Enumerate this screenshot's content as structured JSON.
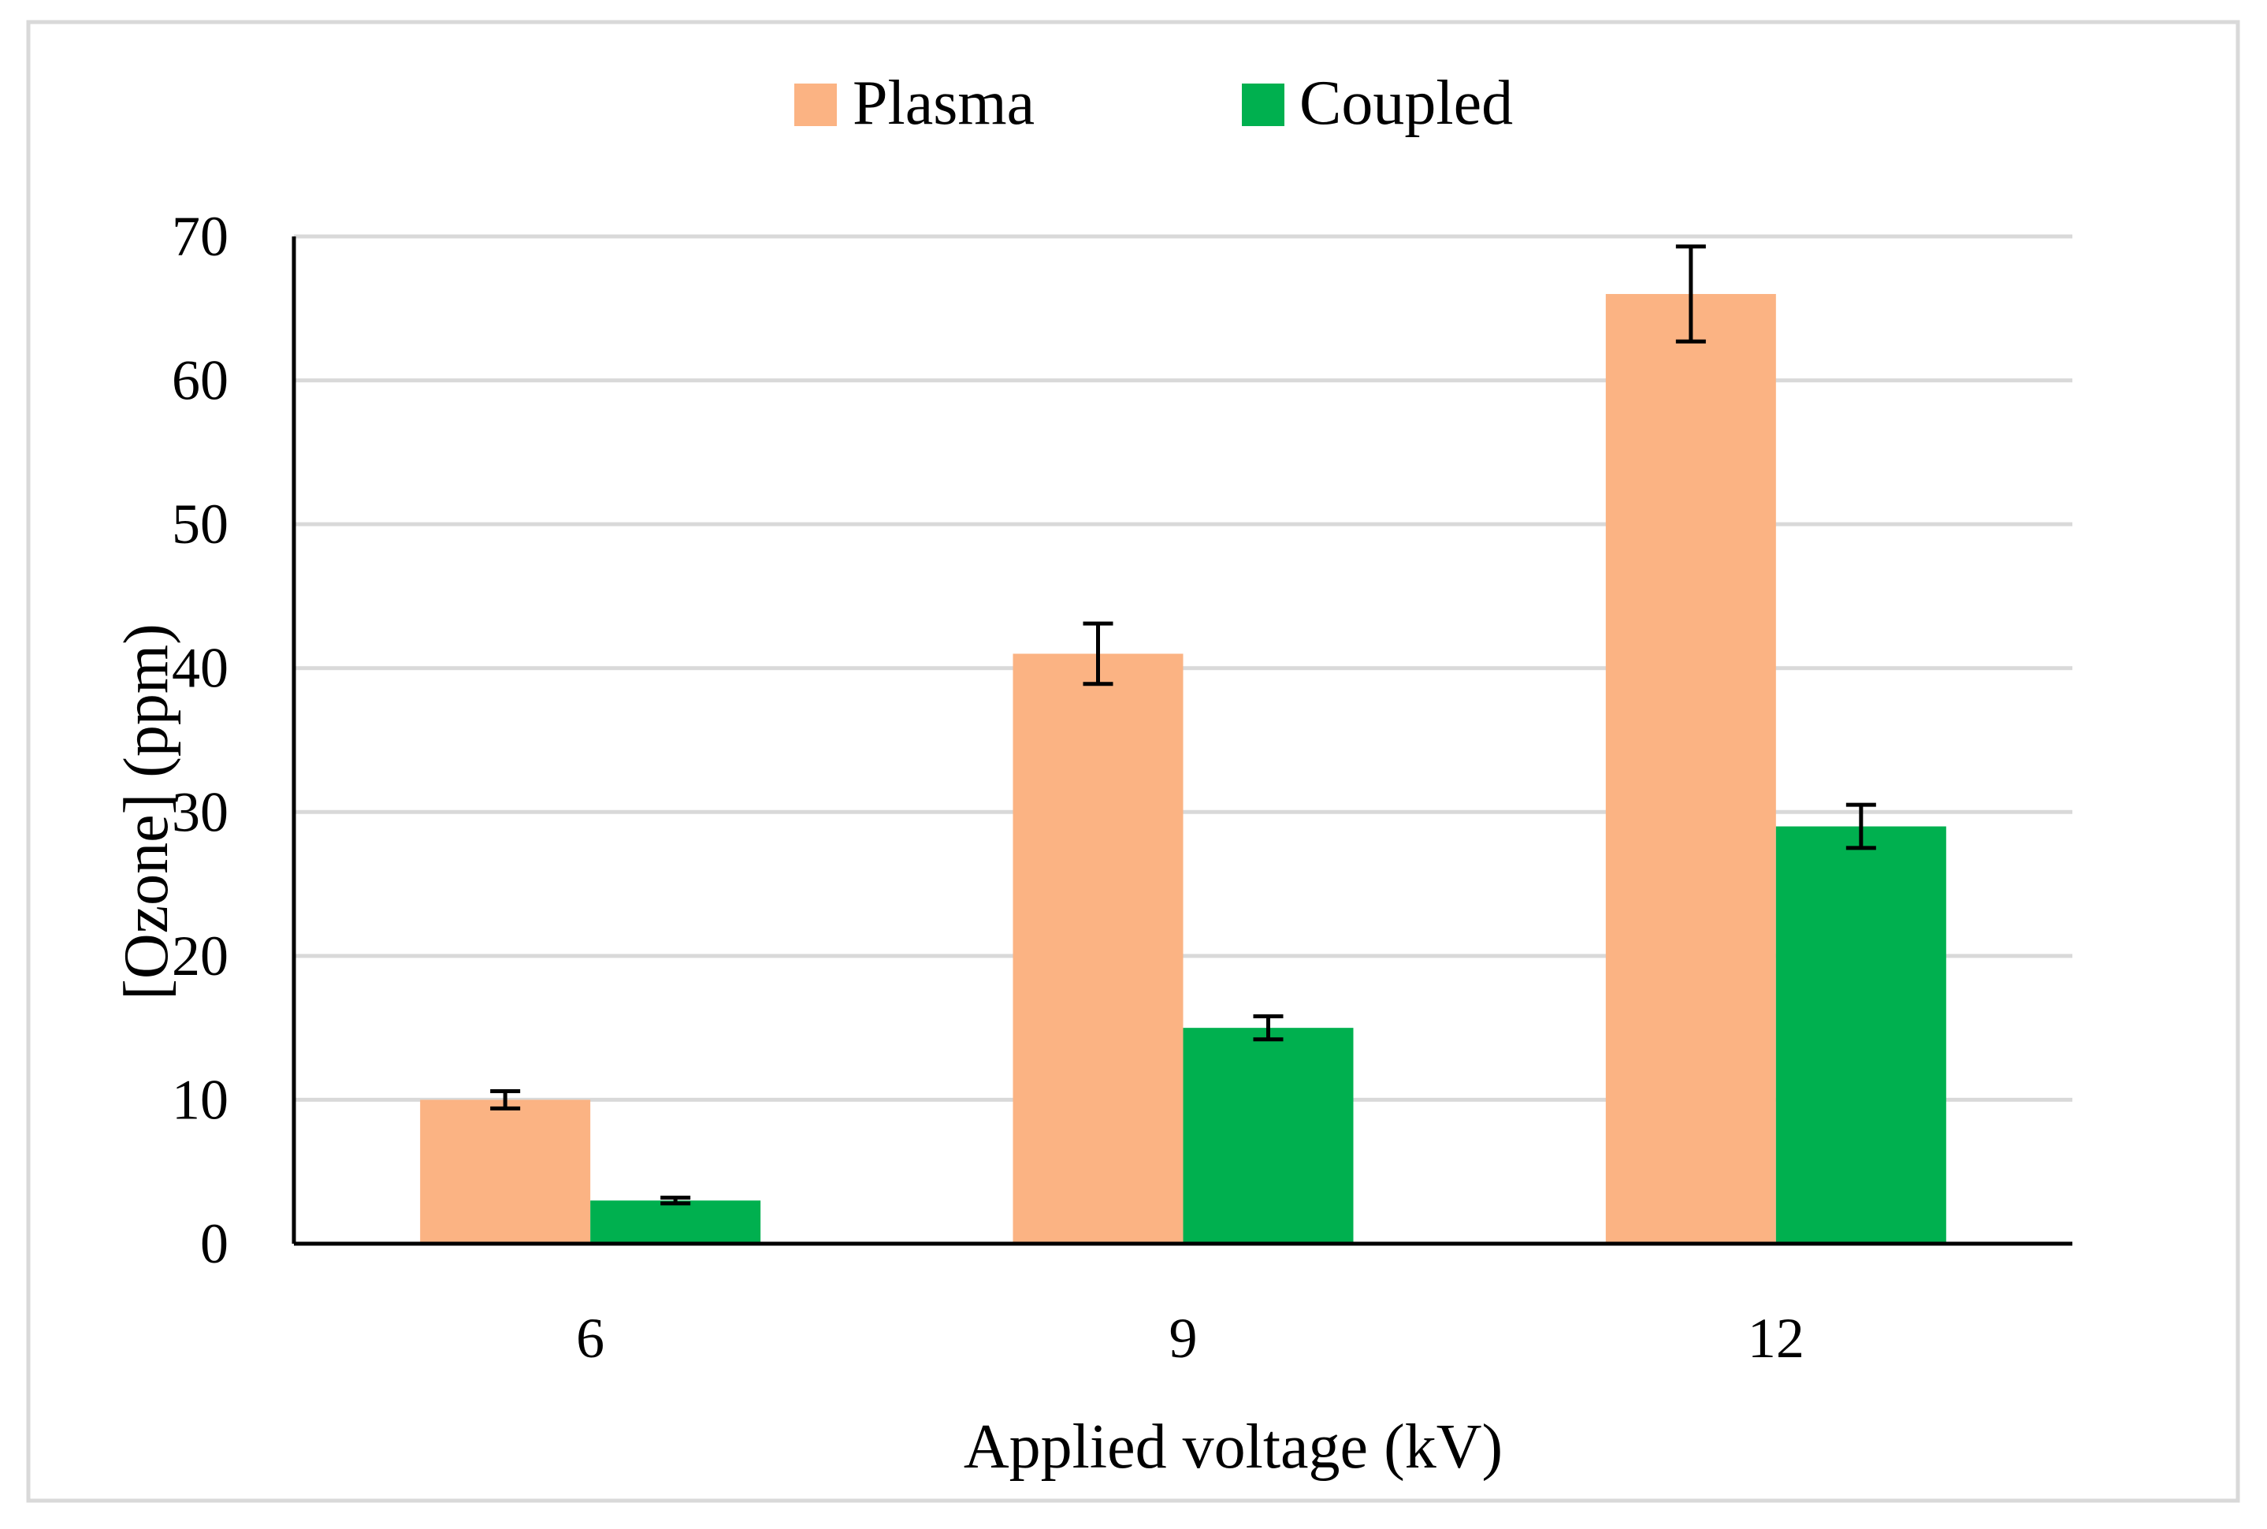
{
  "chart_data": {
    "type": "bar",
    "title": "",
    "xlabel": "Applied voltage (kV)",
    "ylabel": "[Ozone] (ppm)",
    "categories": [
      "6",
      "9",
      "12"
    ],
    "ylim": [
      0,
      70
    ],
    "yticks": [
      0,
      10,
      20,
      30,
      40,
      50,
      60,
      70
    ],
    "ytick_labels": [
      "0",
      "10",
      "20",
      "30",
      "40",
      "50",
      "60",
      "70"
    ],
    "grid": true,
    "legend_position": "top-center",
    "series": [
      {
        "name": "Plasma",
        "color": "#FBB383",
        "values": [
          10,
          41,
          66
        ],
        "errors": [
          0.6,
          2.1,
          3.3
        ]
      },
      {
        "name": "Coupled",
        "color": "#00B04F",
        "values": [
          3,
          15,
          29
        ],
        "errors": [
          0.2,
          0.8,
          1.5
        ]
      }
    ]
  },
  "colors": {
    "frame": "#D9D9D9",
    "grid": "#D9D9D9",
    "axis": "#000000",
    "error_bar": "#000000"
  }
}
